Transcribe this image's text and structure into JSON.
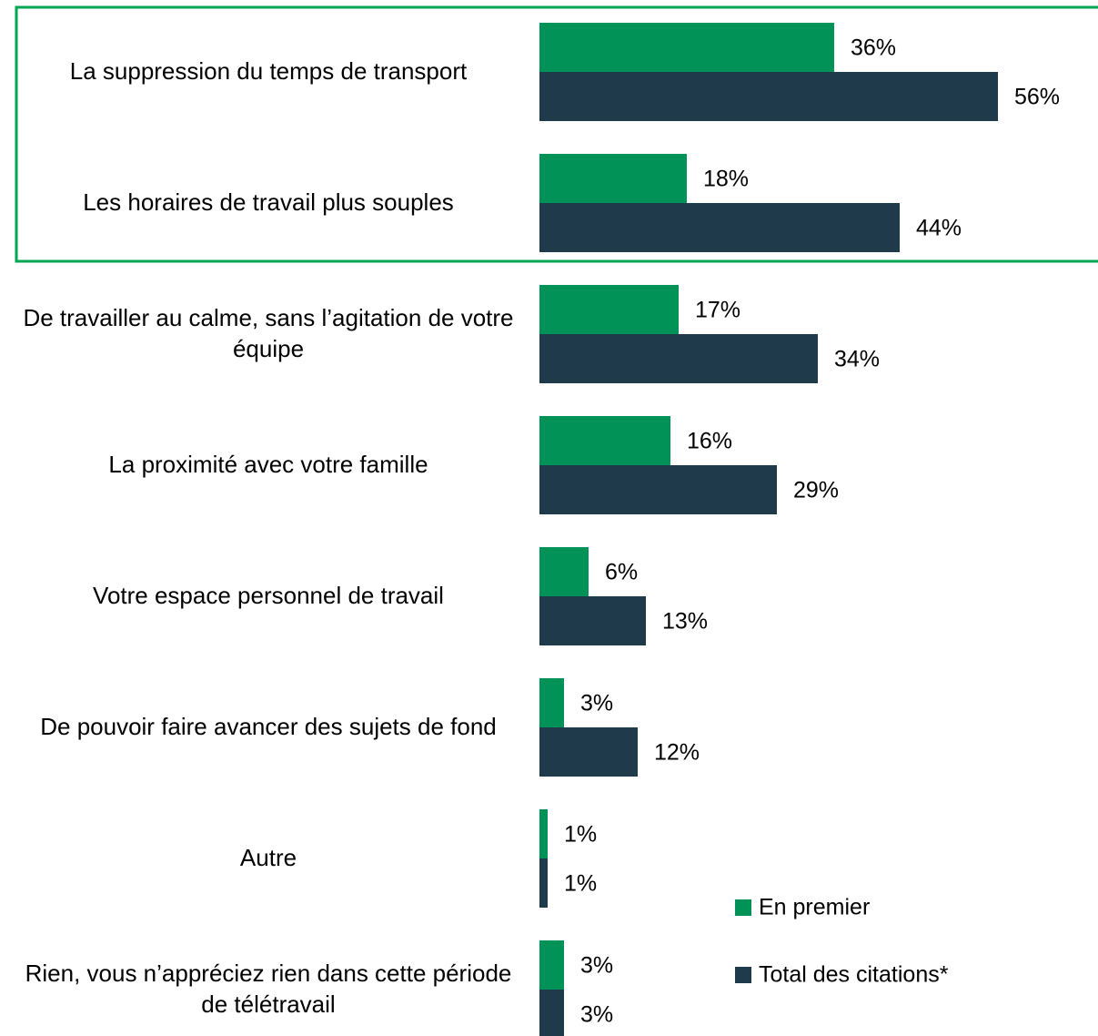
{
  "chart_data": {
    "type": "bar",
    "orientation": "horizontal",
    "categories": [
      "La suppression du temps de transport",
      "Les horaires de travail plus souples",
      "De travailler au calme, sans l’agitation de votre équipe",
      "La proximité avec votre famille",
      "Votre espace personnel de travail",
      "De pouvoir faire avancer des sujets de fond",
      "Autre",
      "Rien, vous n’appréciez rien dans cette période de télétravail"
    ],
    "series": [
      {
        "name": "En premier",
        "color": "#009257",
        "values": [
          36,
          18,
          17,
          16,
          6,
          3,
          1,
          3
        ],
        "value_labels": [
          "36%",
          "18%",
          "17%",
          "16%",
          "6%",
          "3%",
          "1%",
          "3%"
        ]
      },
      {
        "name": "Total des citations*",
        "color": "#1f3b4b",
        "values": [
          56,
          44,
          34,
          29,
          13,
          12,
          1,
          3
        ],
        "value_labels": [
          "56%",
          "44%",
          "34%",
          "29%",
          "13%",
          "12%",
          "1%",
          "3%"
        ]
      }
    ],
    "legend": "bottom-right"
  }
}
